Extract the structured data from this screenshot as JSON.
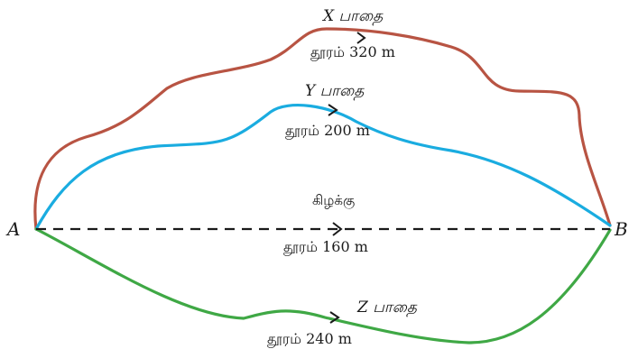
{
  "points": {
    "a": "A",
    "b": "B"
  },
  "paths": {
    "x": {
      "name": "X பாதை",
      "distance": "தூரம் 320 m",
      "color": "#b85443"
    },
    "y": {
      "name": "Y பாதை",
      "distance": "தூரம் 200 m",
      "color": "#1aace0"
    },
    "z": {
      "name": "Z பாதை",
      "distance": "தூரம் 240 m",
      "color": "#3fa845"
    },
    "east": {
      "name": "கிழக்கு",
      "distance": "தூரம் 160 m",
      "color": "#1a1a1a"
    }
  }
}
